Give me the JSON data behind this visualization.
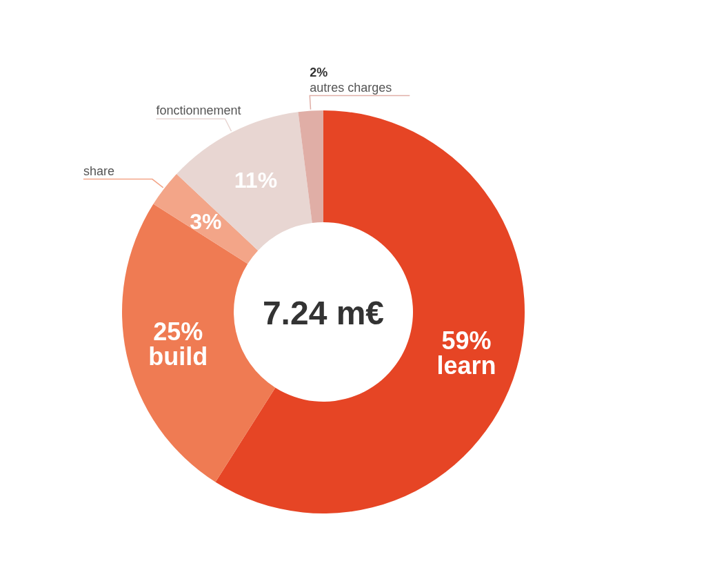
{
  "chart_data": {
    "type": "donut",
    "categories": [
      "learn",
      "build",
      "share",
      "fonctionnement",
      "autres charges"
    ],
    "values": [
      59,
      25,
      3,
      11,
      2
    ],
    "value_labels": [
      "59%",
      "25%",
      "3%",
      "11%",
      "2%"
    ],
    "colors": [
      "#e64525",
      "#ef7b53",
      "#f3a588",
      "#e8d6d2",
      "#e0aea6"
    ],
    "annotations": [
      "7.24 m€"
    ]
  }
}
